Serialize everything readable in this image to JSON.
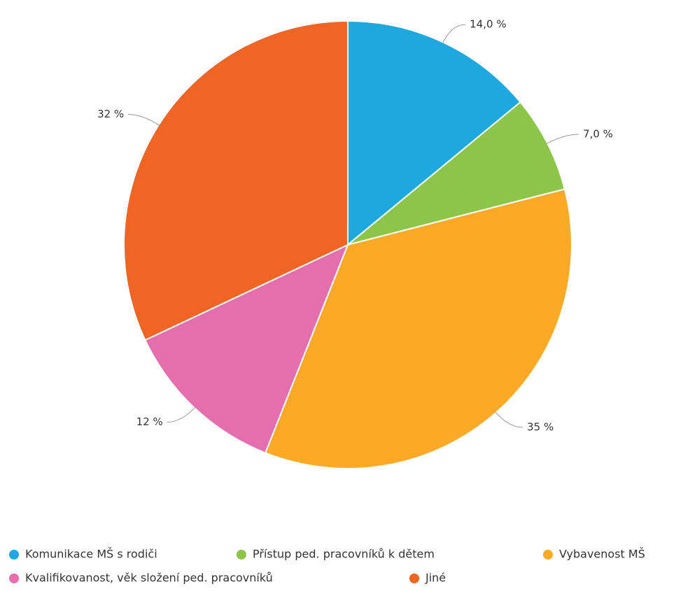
{
  "chart_data": {
    "type": "pie",
    "categories": [
      "Komunikace MŠ s rodiči",
      "Přístup ped. pracovníků k dětem",
      "Vybavenost MŠ",
      "Kvalifikovanost, věk složení ped. pracovníků",
      "Jiné"
    ],
    "values": [
      14.0,
      7.0,
      35,
      12,
      32
    ],
    "value_labels": [
      "14,0 %",
      "7,0 %",
      "35 %",
      "12 %",
      "32 %"
    ],
    "colors": [
      "#1fa8e0",
      "#8cc54a",
      "#fba927",
      "#e56fae",
      "#f06524"
    ]
  }
}
